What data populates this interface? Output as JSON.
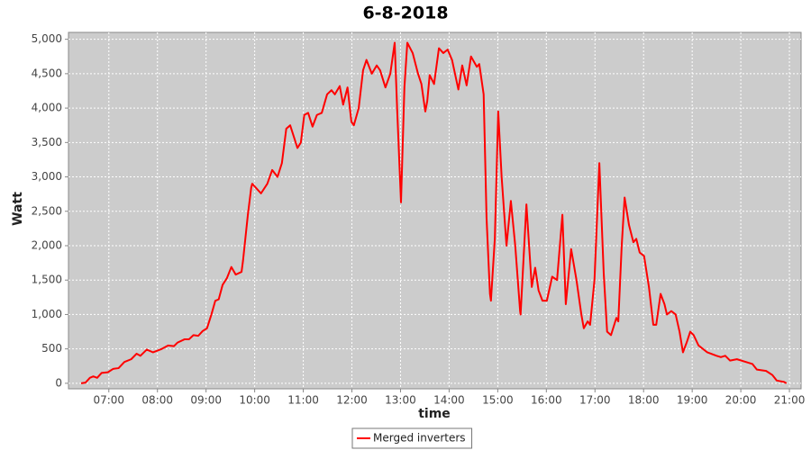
{
  "chart_data": {
    "type": "line",
    "title": "6-8-2018",
    "x_label": "time",
    "y_label": "Watt",
    "xlim": [
      6.17,
      21.24
    ],
    "ylim": [
      -80,
      5100
    ],
    "xticks": [
      {
        "value": 7,
        "label": "07:00"
      },
      {
        "value": 8,
        "label": "08:00"
      },
      {
        "value": 9,
        "label": "09:00"
      },
      {
        "value": 10,
        "label": "10:00"
      },
      {
        "value": 11,
        "label": "11:00"
      },
      {
        "value": 12,
        "label": "12:00"
      },
      {
        "value": 13,
        "label": "13:00"
      },
      {
        "value": 14,
        "label": "14:00"
      },
      {
        "value": 15,
        "label": "15:00"
      },
      {
        "value": 16,
        "label": "16:00"
      },
      {
        "value": 17,
        "label": "17:00"
      },
      {
        "value": 18,
        "label": "18:00"
      },
      {
        "value": 19,
        "label": "19:00"
      },
      {
        "value": 20,
        "label": "20:00"
      },
      {
        "value": 21,
        "label": "21:00"
      }
    ],
    "yticks": [
      0,
      500,
      {
        "value": 1000,
        "label": "1,000"
      },
      {
        "value": 1500,
        "label": "1,500"
      },
      {
        "value": 2000,
        "label": "2,000"
      },
      {
        "value": 2500,
        "label": "2,500"
      },
      {
        "value": 3000,
        "label": "3,000"
      },
      {
        "value": 3500,
        "label": "3,500"
      },
      {
        "value": 4000,
        "label": "4,000"
      },
      {
        "value": 4500,
        "label": "4,500"
      },
      {
        "value": 5000,
        "label": "5,000"
      }
    ],
    "grid": true,
    "legend_position": "bottom",
    "x": [
      6.43,
      6.52,
      6.61,
      6.68,
      6.76,
      6.85,
      6.98,
      7.09,
      7.2,
      7.32,
      7.46,
      7.57,
      7.65,
      7.78,
      7.91,
      8.09,
      8.22,
      8.34,
      8.41,
      8.56,
      8.65,
      8.74,
      8.84,
      8.93,
      9.02,
      9.11,
      9.19,
      9.26,
      9.34,
      9.43,
      9.52,
      9.61,
      9.73,
      9.76,
      9.86,
      9.93,
      9.95,
      10.13,
      10.26,
      10.36,
      10.47,
      10.56,
      10.65,
      10.73,
      10.88,
      10.95,
      11.02,
      11.1,
      11.19,
      11.28,
      11.38,
      11.49,
      11.58,
      11.65,
      11.75,
      11.82,
      11.91,
      11.99,
      12.04,
      12.14,
      12.23,
      12.3,
      12.41,
      12.51,
      12.58,
      12.69,
      12.79,
      12.88,
      12.93,
      13.01,
      13.08,
      13.14,
      13.25,
      13.36,
      13.43,
      13.51,
      13.55,
      13.6,
      13.69,
      13.79,
      13.88,
      13.97,
      14.06,
      14.19,
      14.27,
      14.36,
      14.45,
      14.57,
      14.62,
      14.71,
      14.77,
      14.84,
      14.86,
      14.94,
      15.01,
      15.08,
      15.18,
      15.27,
      15.36,
      15.46,
      15.47,
      15.59,
      15.7,
      15.77,
      15.84,
      15.92,
      16.01,
      16.12,
      16.22,
      16.33,
      16.4,
      16.51,
      16.62,
      16.72,
      16.77,
      16.85,
      16.9,
      16.99,
      17.09,
      17.18,
      17.25,
      17.33,
      17.44,
      17.48,
      17.55,
      17.61,
      17.7,
      17.79,
      17.85,
      17.92,
      18.01,
      18.11,
      18.2,
      18.26,
      18.35,
      18.43,
      18.48,
      18.57,
      18.66,
      18.74,
      18.81,
      18.89,
      18.96,
      19.03,
      19.13,
      19.31,
      19.5,
      19.59,
      19.68,
      19.78,
      19.92,
      20.15,
      20.24,
      20.33,
      20.52,
      20.65,
      20.74,
      20.89,
      20.94
    ],
    "series": [
      {
        "name": "Merged inverters",
        "color": "#ff0000",
        "values": [
          0,
          10,
          80,
          100,
          80,
          150,
          160,
          210,
          220,
          310,
          350,
          430,
          400,
          490,
          450,
          500,
          550,
          540,
          590,
          640,
          640,
          700,
          690,
          760,
          800,
          1000,
          1200,
          1220,
          1430,
          1530,
          1690,
          1580,
          1620,
          1780,
          2450,
          2850,
          2900,
          2760,
          2900,
          3100,
          3000,
          3200,
          3700,
          3750,
          3420,
          3500,
          3900,
          3930,
          3730,
          3900,
          3930,
          4200,
          4260,
          4200,
          4320,
          4050,
          4300,
          3800,
          3750,
          4000,
          4550,
          4700,
          4500,
          4620,
          4550,
          4300,
          4500,
          4950,
          4000,
          2630,
          4300,
          4950,
          4800,
          4500,
          4350,
          3950,
          4100,
          4480,
          4350,
          4870,
          4800,
          4850,
          4700,
          4270,
          4620,
          4330,
          4750,
          4600,
          4640,
          4200,
          2400,
          1300,
          1200,
          2100,
          3950,
          3000,
          2000,
          2650,
          2000,
          1050,
          1000,
          2600,
          1400,
          1680,
          1350,
          1200,
          1200,
          1550,
          1500,
          2450,
          1150,
          1950,
          1500,
          1000,
          800,
          900,
          850,
          1500,
          3200,
          1600,
          750,
          700,
          950,
          900,
          2000,
          2700,
          2300,
          2050,
          2100,
          1900,
          1850,
          1400,
          850,
          850,
          1300,
          1150,
          1000,
          1050,
          1000,
          750,
          450,
          600,
          750,
          700,
          550,
          450,
          400,
          380,
          400,
          330,
          350,
          300,
          280,
          200,
          180,
          120,
          40,
          20,
          0
        ]
      }
    ]
  }
}
